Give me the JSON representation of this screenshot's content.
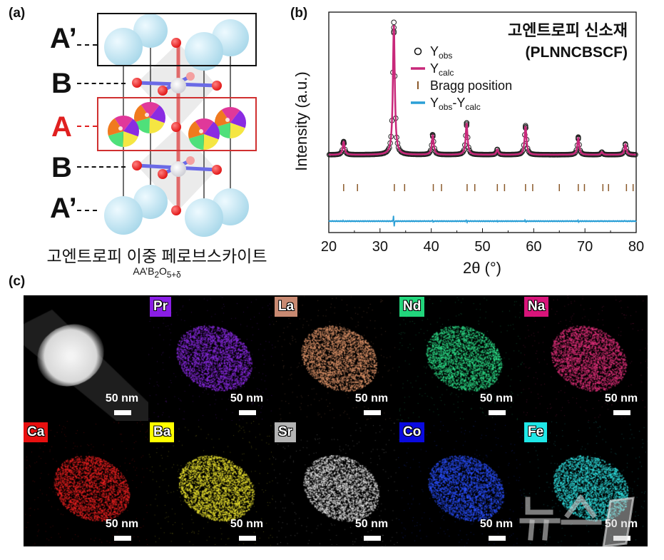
{
  "panels": {
    "a": "(a)",
    "b": "(b)",
    "c": "(c)"
  },
  "structure": {
    "sites": [
      "A’",
      "B",
      "A",
      "B",
      "A’"
    ],
    "site_colors": [
      "#111111",
      "#111111",
      "#e02020",
      "#111111",
      "#111111"
    ],
    "caption": "고엔트로피 이중 페로브스카이트",
    "formula": {
      "base": "AA’B",
      "sub1": "2",
      "mid": "O",
      "sub2": "5+δ"
    },
    "a_site_colors": [
      "#8a2be2",
      "#f5e642",
      "#4fe07a",
      "#f07a1e",
      "#e0389a"
    ],
    "a_prime_color": "#a9d8ea",
    "oxygen_color": "#e01010",
    "b_color": "#f2f2f2"
  },
  "chart_data": {
    "type": "line",
    "title": "고엔트로피 신소재",
    "subtitle": "(PLNNCBSCF)",
    "xlabel": "2θ (°)",
    "ylabel": "Intensity (a.u.)",
    "xlim": [
      20,
      80
    ],
    "xticks": [
      20,
      30,
      40,
      50,
      60,
      70,
      80
    ],
    "ytick_labels": false,
    "grid": false,
    "legend_position": "top-right",
    "legend": [
      {
        "main": "Y",
        "sub": "obs",
        "main2": "",
        "sub2": "",
        "color": "#111111",
        "marker": "circle"
      },
      {
        "main": "Y",
        "sub": "calc",
        "main2": "",
        "sub2": "",
        "color": "#c8287a",
        "marker": "line"
      },
      {
        "main": "Bragg position",
        "sub": "",
        "main2": "",
        "sub2": "",
        "color": "#8b5a2b",
        "marker": "tick"
      },
      {
        "main": "Y",
        "sub": "obs",
        "main2": "-Y",
        "sub2": "calc",
        "color": "#2a9fd6",
        "marker": "line"
      }
    ],
    "peaks": [
      {
        "x": 22.9,
        "intensity": 10
      },
      {
        "x": 32.7,
        "intensity": 100
      },
      {
        "x": 40.3,
        "intensity": 15
      },
      {
        "x": 46.9,
        "intensity": 24
      },
      {
        "x": 52.9,
        "intensity": 4
      },
      {
        "x": 58.4,
        "intensity": 22
      },
      {
        "x": 68.7,
        "intensity": 13
      },
      {
        "x": 73.3,
        "intensity": 2
      },
      {
        "x": 77.9,
        "intensity": 8
      }
    ],
    "bragg_positions": [
      22.9,
      25.6,
      32.8,
      34.8,
      40.4,
      42.0,
      47.0,
      48.5,
      52.9,
      54.3,
      58.4,
      59.8,
      65.0,
      68.7,
      69.9,
      73.5,
      74.6,
      78.1,
      79.4
    ]
  },
  "eds": {
    "scale_label": "50 nm",
    "maps": [
      {
        "label": "",
        "color": "#ffffff",
        "label_bg": ""
      },
      {
        "label": "Pr",
        "color": "#8a2be2",
        "label_bg": "#8a1ee6"
      },
      {
        "label": "La",
        "color": "#e0956a",
        "label_bg": "#c98a72"
      },
      {
        "label": "Nd",
        "color": "#2ee08a",
        "label_bg": "#22d67c"
      },
      {
        "label": "Na",
        "color": "#e0307a",
        "label_bg": "#d8147a"
      },
      {
        "label": "Ca",
        "color": "#e82020",
        "label_bg": "#e81010"
      },
      {
        "label": "Ba",
        "color": "#f0e830",
        "label_bg": "#ffff00"
      },
      {
        "label": "Sr",
        "color": "#e0e0e0",
        "label_bg": "#b4b4b4"
      },
      {
        "label": "Co",
        "color": "#2a50ff",
        "label_bg": "#0a0ae0"
      },
      {
        "label": "Fe",
        "color": "#30e0e0",
        "label_bg": "#20e8e8"
      }
    ]
  },
  "watermark": "뉴스1"
}
